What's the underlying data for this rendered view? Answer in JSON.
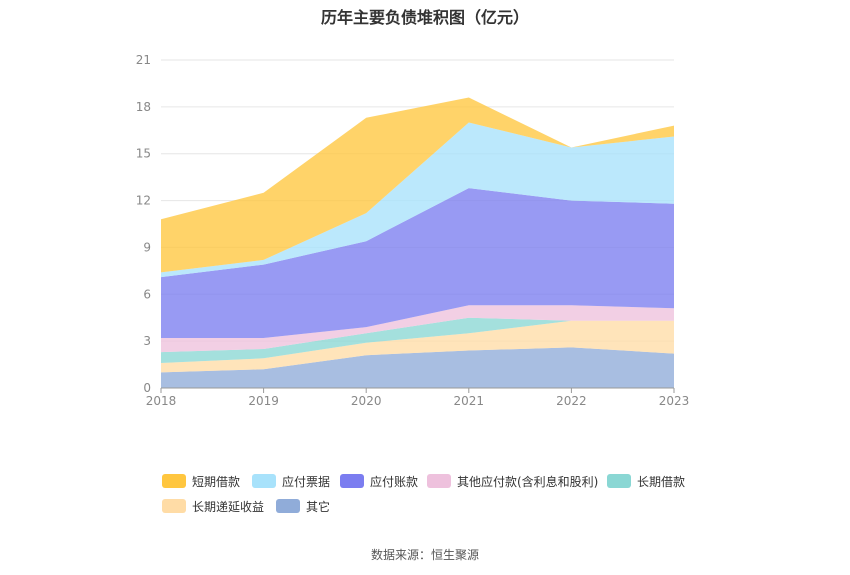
{
  "title": "历年主要负债堆积图（亿元）",
  "source": "数据来源：恒生聚源",
  "chart_data": {
    "type": "area",
    "stacked": true,
    "x": [
      "2018",
      "2019",
      "2020",
      "2021",
      "2022",
      "2023"
    ],
    "ylim": [
      0,
      21
    ],
    "yticks": [
      "0",
      "3",
      "6",
      "9",
      "12",
      "15",
      "18",
      "21"
    ],
    "grid": true,
    "legend_position": "bottom",
    "series": [
      {
        "name": "其它",
        "color": "#90acd9",
        "values": [
          1.0,
          1.2,
          2.1,
          2.4,
          2.6,
          2.2
        ]
      },
      {
        "name": "长期递延收益",
        "color": "#ffdca6",
        "values": [
          0.6,
          0.7,
          0.8,
          1.1,
          1.7,
          2.1
        ]
      },
      {
        "name": "长期借款",
        "color": "#8ad7d4",
        "values": [
          0.7,
          0.6,
          0.6,
          1.0,
          0.0,
          0.0
        ]
      },
      {
        "name": "其他应付款(含利息和股利)",
        "color": "#eec1dd",
        "values": [
          0.9,
          0.7,
          0.4,
          0.8,
          1.0,
          0.8
        ]
      },
      {
        "name": "应付账款",
        "color": "#7b7df0",
        "values": [
          3.9,
          4.7,
          5.5,
          7.5,
          6.7,
          6.7
        ]
      },
      {
        "name": "应付票据",
        "color": "#a8e2fb",
        "values": [
          0.3,
          0.3,
          1.8,
          4.2,
          3.4,
          4.3
        ]
      },
      {
        "name": "短期借款",
        "color": "#ffc63f",
        "values": [
          3.4,
          4.3,
          6.1,
          1.6,
          0.0,
          0.7
        ]
      }
    ],
    "legend": [
      {
        "name": "短期借款",
        "color": "#ffc63f"
      },
      {
        "name": "应付票据",
        "color": "#a8e2fb"
      },
      {
        "name": "应付账款",
        "color": "#7b7df0"
      },
      {
        "name": "其他应付款(含利息和股利)",
        "color": "#eec1dd"
      },
      {
        "name": "长期借款",
        "color": "#8ad7d4"
      },
      {
        "name": "长期递延收益",
        "color": "#ffdca6"
      },
      {
        "name": "其它",
        "color": "#90acd9"
      }
    ]
  }
}
